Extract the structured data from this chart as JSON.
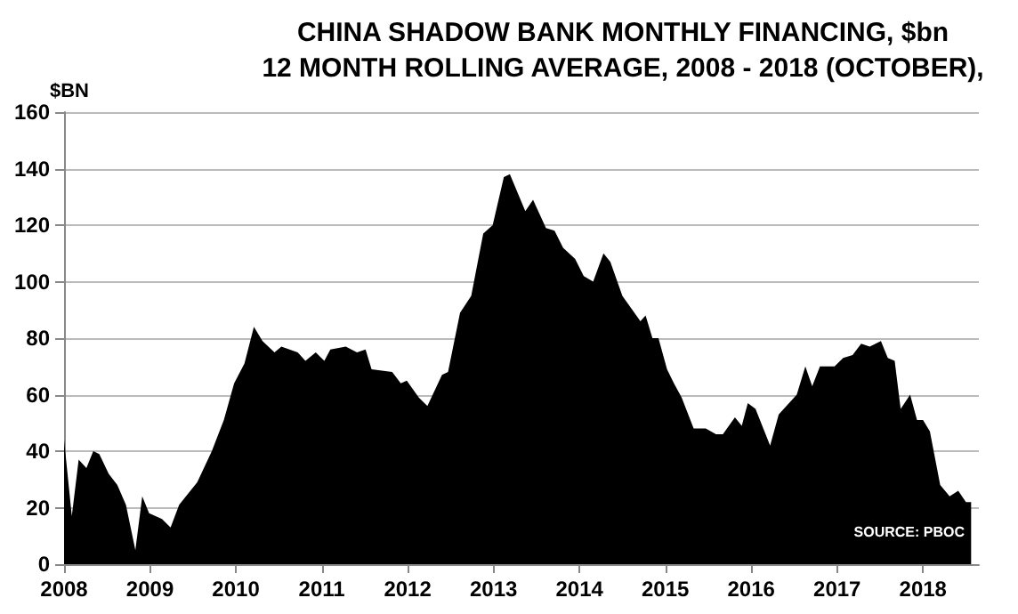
{
  "chart_data": {
    "type": "area",
    "title": "CHINA SHADOW BANK MONTHLY FINANCING, $bn",
    "subtitle": "12 MONTH ROLLING AVERAGE, 2008 - 2018 (OCTOBER),",
    "ylabel": "$BN",
    "annotations": [
      "SOURCE: PBOC"
    ],
    "x": [
      2008.0,
      2008.09,
      2008.17,
      2008.26,
      2008.34,
      2008.41,
      2008.52,
      2008.62,
      2008.72,
      2008.83,
      2008.91,
      2008.99,
      2009.14,
      2009.24,
      2009.34,
      2009.55,
      2009.72,
      2009.86,
      2009.98,
      2010.1,
      2010.21,
      2010.31,
      2010.45,
      2010.53,
      2010.72,
      2010.81,
      2010.93,
      2011.03,
      2011.1,
      2011.28,
      2011.41,
      2011.51,
      2011.58,
      2011.82,
      2011.92,
      2011.99,
      2012.13,
      2012.23,
      2012.4,
      2012.47,
      2012.61,
      2012.74,
      2012.88,
      2012.99,
      2013.12,
      2013.19,
      2013.37,
      2013.46,
      2013.61,
      2013.71,
      2013.81,
      2013.95,
      2014.05,
      2014.16,
      2014.28,
      2014.36,
      2014.5,
      2014.64,
      2014.71,
      2014.77,
      2014.85,
      2014.92,
      2015.02,
      2015.1,
      2015.19,
      2015.33,
      2015.47,
      2015.59,
      2015.67,
      2015.81,
      2015.89,
      2015.96,
      2016.05,
      2016.22,
      2016.32,
      2016.53,
      2016.63,
      2016.71,
      2016.8,
      2016.97,
      2017.07,
      2017.18,
      2017.28,
      2017.38,
      2017.51,
      2017.59,
      2017.67,
      2017.74,
      2017.85,
      2017.93,
      2018.0,
      2018.08,
      2018.2,
      2018.31,
      2018.41,
      2018.5,
      2018.56
    ],
    "series": [
      {
        "color": "#000000",
        "values": [
          44,
          17,
          37,
          34,
          40,
          39,
          32,
          28,
          21,
          5,
          24,
          18,
          16,
          13,
          21,
          29,
          40,
          51,
          64,
          71,
          84,
          79,
          75,
          77,
          75,
          72,
          75,
          72,
          76,
          77,
          75,
          76,
          69,
          68,
          64,
          65,
          59,
          56,
          67,
          68,
          89,
          95,
          117,
          120,
          137,
          138,
          125,
          129,
          119,
          118,
          112,
          108,
          102,
          100,
          110,
          107,
          95,
          89,
          86,
          88,
          80,
          80,
          69,
          64,
          59,
          48,
          48,
          46,
          46,
          52,
          49,
          57,
          55,
          42,
          53,
          60,
          70,
          63,
          70,
          70,
          73,
          74,
          78,
          77,
          79,
          73,
          72,
          55,
          60,
          51,
          51,
          47,
          28,
          24,
          26,
          22,
          22
        ]
      }
    ],
    "xlim": [
      2008,
      2018.65
    ],
    "xticks": [
      2008,
      2009,
      2010,
      2011,
      2012,
      2013,
      2014,
      2015,
      2016,
      2017,
      2018
    ],
    "ylim": [
      0,
      160
    ],
    "yticks": [
      0,
      20,
      40,
      60,
      80,
      100,
      120,
      140,
      160
    ],
    "grid": "y"
  }
}
